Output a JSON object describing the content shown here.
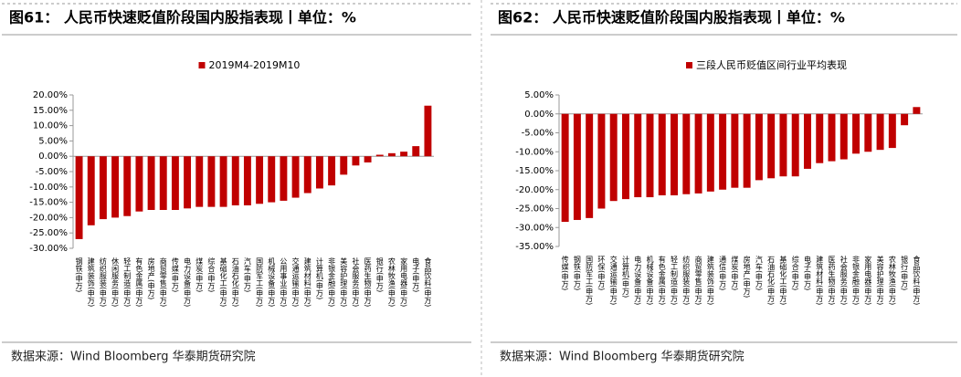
{
  "chart_data": [
    {
      "type": "bar",
      "title": "图61：  人民币快速贬值阶段国内股指表现丨单位：%",
      "source": "数据来源：Wind Bloomberg 华泰期货研究院",
      "categories": [
        "钢铁(申万)",
        "建筑装饰(申万)",
        "纺织服装(申万)",
        "休闲服务(申万)",
        "轻工制造(申万)",
        "有色金属(申万)",
        "房地产(申万)",
        "商贸零售(申万)",
        "传媒(申万)",
        "电力设备(申万)",
        "煤炭(申万)",
        "综合(申万)",
        "基础化工(申万)",
        "石油石化(申万)",
        "汽车(申万)",
        "国防军工(申万)",
        "机械设备(申万)",
        "公用事业(申万)",
        "交通运输(申万)",
        "建筑材料(申万)",
        "计算机(申万)",
        "非银金融(申万)",
        "美容护理(申万)",
        "社会服务(申万)",
        "医药生物(申万)",
        "银行(申万)",
        "农林牧渔(申万)",
        "家用电器(申万)",
        "电子(申万)",
        "食品饮料(申万)"
      ],
      "series": [
        {
          "name": "2019M4-2019M10",
          "color": "#c00000",
          "values": [
            -27,
            -22.5,
            -20.5,
            -20,
            -19.5,
            -18,
            -17.5,
            -17.5,
            -17.5,
            -17,
            -16.5,
            -16.5,
            -16.5,
            -16,
            -16,
            -15.5,
            -15,
            -14.5,
            -13.5,
            -12,
            -10.5,
            -9.5,
            -6,
            -3,
            -2,
            0.5,
            1,
            1.5,
            3.3,
            16.5
          ]
        }
      ],
      "ylim": [
        -30,
        20
      ],
      "yticks": [
        {
          "value": -30,
          "label": "-30.00%"
        },
        {
          "value": -25,
          "label": "-25.00%"
        },
        {
          "value": -20,
          "label": "-20.00%"
        },
        {
          "value": -15,
          "label": "-15.00%"
        },
        {
          "value": -10,
          "label": "-10.00%"
        },
        {
          "value": -5,
          "label": "-5.00%"
        },
        {
          "value": 0,
          "label": "0.00%"
        },
        {
          "value": 5,
          "label": "5.00%"
        },
        {
          "value": 10,
          "label": "10.00%"
        },
        {
          "value": 15,
          "label": "15.00%"
        },
        {
          "value": 20,
          "label": "20.00%"
        }
      ],
      "grid": false
    },
    {
      "type": "bar",
      "title": "图62：  人民币快速贬值阶段国内股指表现丨单位：%",
      "source": "数据来源：Wind Bloomberg 华泰期货研究院",
      "categories": [
        "传媒(申万)",
        "钢铁(申万)",
        "国防军工(申万)",
        "环保(申万)",
        "交通运输(申万)",
        "计算机(申万)",
        "电力设备(申万)",
        "机械设备(申万)",
        "有色金属(申万)",
        "轻工制造(申万)",
        "纺织服装(申万)",
        "商贸零售(申万)",
        "建筑装饰(申万)",
        "通信(申万)",
        "煤炭(申万)",
        "房地产(申万)",
        "汽车(申万)",
        "石油石化(申万)",
        "基础化工(申万)",
        "综合(申万)",
        "电子(申万)",
        "建筑材料(申万)",
        "医药生物(申万)",
        "社会服务(申万)",
        "非银金融(申万)",
        "家用电器(申万)",
        "美容护理(申万)",
        "农林牧渔(申万)",
        "银行(申万)",
        "食品饮料(申万)"
      ],
      "series": [
        {
          "name": "三段人民币贬值区间行业平均表现",
          "color": "#c00000",
          "values": [
            -28.5,
            -28,
            -27.5,
            -25,
            -23,
            -22.5,
            -22,
            -22,
            -21.5,
            -21.5,
            -21.2,
            -21,
            -20.5,
            -20,
            -19.5,
            -19.5,
            -17.5,
            -17,
            -16.5,
            -16.5,
            -14.5,
            -13,
            -12.5,
            -12,
            -10.5,
            -10,
            -9.5,
            -9,
            -3,
            1.8
          ]
        }
      ],
      "ylim": [
        -35,
        5
      ],
      "yticks": [
        {
          "value": -35,
          "label": "-35.00%"
        },
        {
          "value": -30,
          "label": "-30.00%"
        },
        {
          "value": -25,
          "label": "-25.00%"
        },
        {
          "value": -20,
          "label": "-20.00%"
        },
        {
          "value": -15,
          "label": "-15.00%"
        },
        {
          "value": -10,
          "label": "-10.00%"
        },
        {
          "value": -5,
          "label": "-5.00%"
        },
        {
          "value": 0,
          "label": "0.00%"
        },
        {
          "value": 5,
          "label": "5.00%"
        }
      ],
      "grid": false
    }
  ]
}
